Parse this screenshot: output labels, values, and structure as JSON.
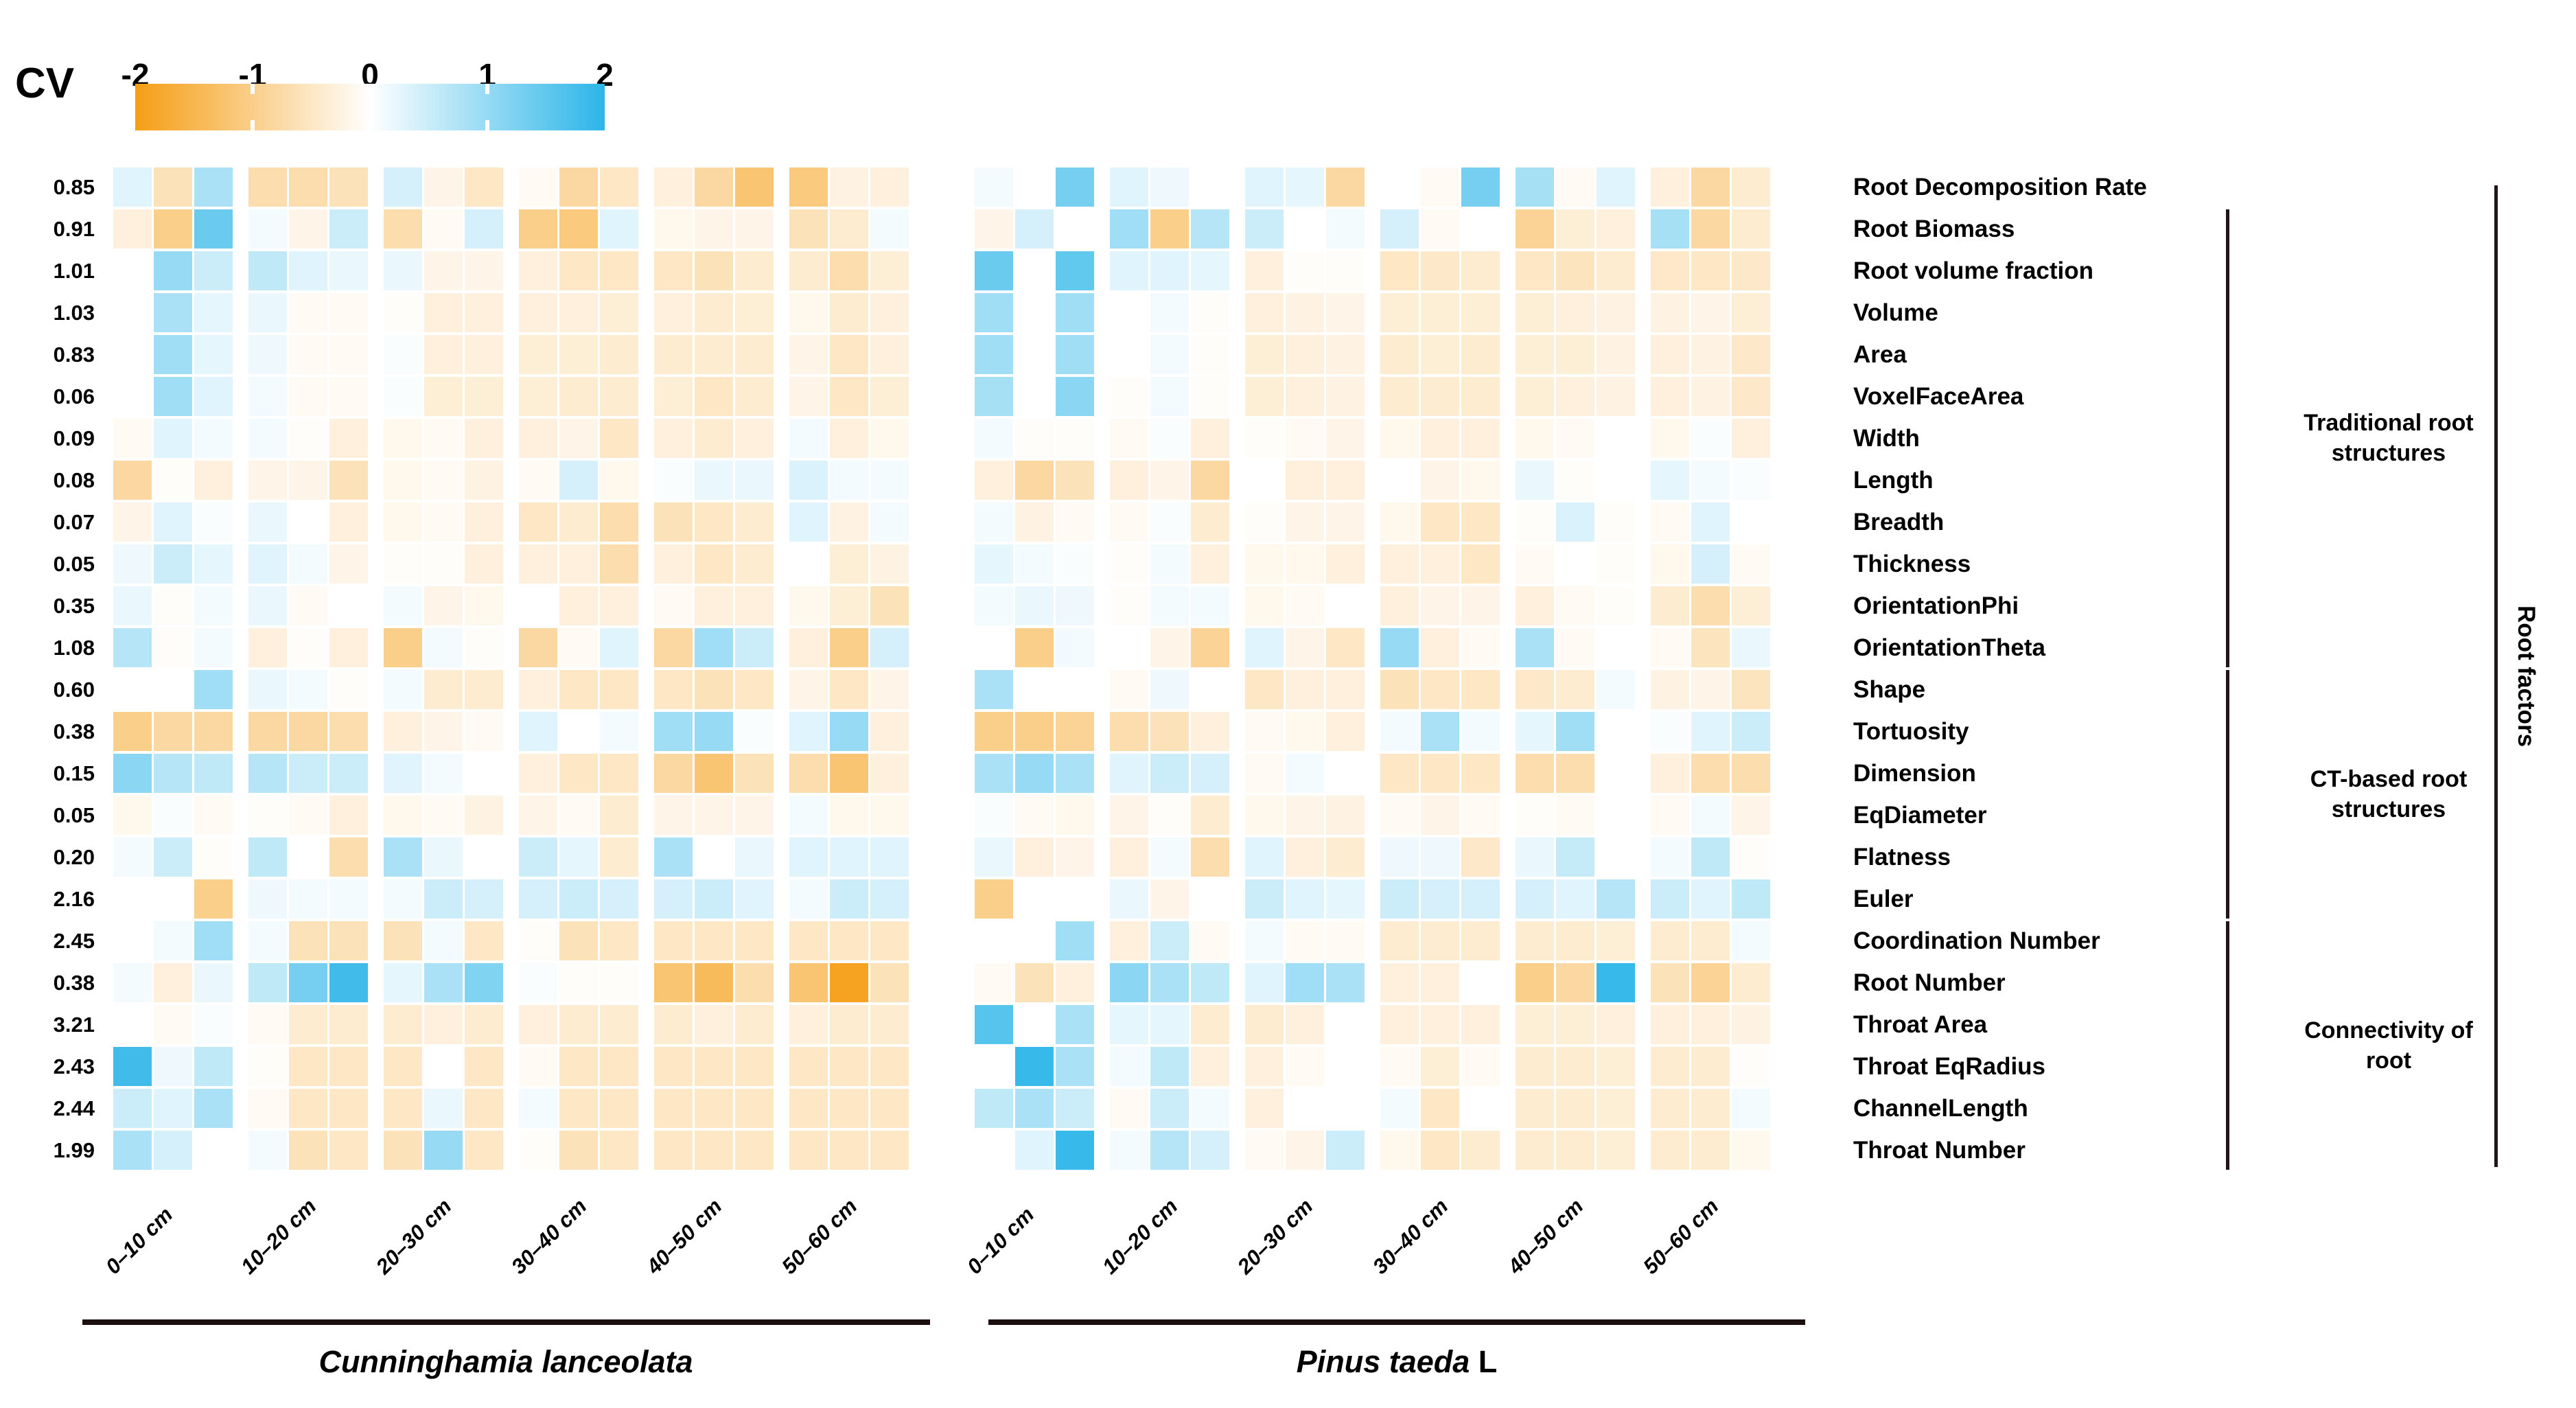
{
  "legend": {
    "label": "CV",
    "ticks": [
      "-2",
      "-1",
      "0",
      "1",
      "2"
    ],
    "color_negative_end": "#F59E15",
    "color_zero": "#FFFFFF",
    "color_positive_end": "#2CB5E8"
  },
  "annotations": {
    "groups": [
      {
        "id": "traditional",
        "label_line1": "Traditional root",
        "label_line2": "structures"
      },
      {
        "id": "ct",
        "label_line1": "CT-based root",
        "label_line2": "structures"
      },
      {
        "id": "connectivity",
        "label_line1": "Connectivity of",
        "label_line2": "root"
      }
    ],
    "right_axis_label": "Root factors"
  },
  "chart_data": {
    "type": "heatmap",
    "value_range": [
      -2,
      2
    ],
    "colorbar_title": "CV",
    "species": [
      {
        "key": "cl",
        "name_italic": "Cunninghamia lanceolata",
        "name_suffix": ""
      },
      {
        "key": "pt",
        "name_italic": "Pinus taeda",
        "name_suffix": "L"
      }
    ],
    "depths": [
      "0–10 cm",
      "10–20 cm",
      "20–30 cm",
      "30–40 cm",
      "40–50 cm",
      "50–60 cm"
    ],
    "replicates_per_depth": 3,
    "rows": [
      {
        "label": "Root Decomposition Rate",
        "cv": "0.85",
        "group": "none",
        "cl": [
          0.3,
          -0.6,
          0.8,
          -0.7,
          -0.7,
          -0.6,
          0.4,
          -0.2,
          -0.5,
          -0.1,
          -0.8,
          -0.5,
          -0.3,
          -0.8,
          -1.2,
          -1.1,
          -0.25,
          -0.3
        ],
        "pt": [
          0.1,
          0,
          1.3,
          0.3,
          0.15,
          0,
          0.3,
          0.25,
          -0.8,
          0,
          -0.1,
          1.3,
          0.85,
          -0.1,
          0.3,
          -0.3,
          -0.8,
          -0.4
        ]
      },
      {
        "label": "Root Biomass",
        "cv": "0.91",
        "group": "traditional",
        "cl": [
          -0.3,
          -1.0,
          1.4,
          0.1,
          -0.2,
          0.5,
          -0.7,
          -0.1,
          0.4,
          -1.0,
          -1.1,
          0.3,
          -0.15,
          -0.2,
          -0.2,
          -0.6,
          -0.4,
          0.1
        ],
        "pt": [
          -0.2,
          0.4,
          0,
          0.9,
          -1.0,
          0.7,
          0.5,
          0,
          0.1,
          0.4,
          -0.1,
          0,
          -0.9,
          -0.35,
          -0.3,
          0.85,
          -0.8,
          -0.4
        ]
      },
      {
        "label": "Root volume fraction",
        "cv": "1.01",
        "group": "traditional",
        "cl": [
          0,
          1.0,
          0.5,
          0.6,
          0.3,
          0.2,
          0.2,
          -0.2,
          -0.2,
          -0.3,
          -0.5,
          -0.5,
          -0.5,
          -0.6,
          -0.4,
          -0.4,
          -0.7,
          -0.35
        ],
        "pt": [
          1.4,
          0,
          1.5,
          0.3,
          0.3,
          0.25,
          -0.3,
          -0.05,
          -0.05,
          -0.5,
          -0.45,
          -0.4,
          -0.5,
          -0.55,
          -0.4,
          -0.45,
          -0.5,
          -0.45
        ]
      },
      {
        "label": "Volume",
        "cv": "1.03",
        "group": "traditional",
        "cl": [
          0,
          0.8,
          0.25,
          0.2,
          -0.1,
          -0.1,
          -0.05,
          -0.3,
          -0.3,
          -0.3,
          -0.3,
          -0.35,
          -0.3,
          -0.4,
          -0.35,
          -0.15,
          -0.4,
          -0.3
        ],
        "pt": [
          0.9,
          0,
          0.9,
          0,
          0.1,
          -0.05,
          -0.3,
          -0.25,
          -0.2,
          -0.35,
          -0.35,
          -0.35,
          -0.35,
          -0.3,
          -0.25,
          -0.25,
          -0.2,
          -0.35
        ]
      },
      {
        "label": "Area",
        "cv": "0.83",
        "group": "traditional",
        "cl": [
          0,
          0.9,
          0.25,
          0.15,
          -0.1,
          -0.1,
          0.05,
          -0.3,
          -0.3,
          -0.35,
          -0.35,
          -0.4,
          -0.4,
          -0.4,
          -0.4,
          -0.2,
          -0.5,
          -0.3
        ],
        "pt": [
          0.9,
          0,
          0.9,
          0,
          0.1,
          -0.05,
          -0.35,
          -0.3,
          -0.25,
          -0.4,
          -0.35,
          -0.4,
          -0.35,
          -0.35,
          -0.25,
          -0.3,
          -0.25,
          -0.45
        ]
      },
      {
        "label": "VoxelFaceArea",
        "cv": "0.06",
        "group": "traditional",
        "cl": [
          0,
          0.9,
          0.3,
          0.1,
          -0.1,
          -0.1,
          0.05,
          -0.35,
          -0.35,
          -0.35,
          -0.4,
          -0.4,
          -0.35,
          -0.5,
          -0.4,
          -0.2,
          -0.5,
          -0.35
        ],
        "pt": [
          0.85,
          0,
          1.1,
          -0.05,
          0.1,
          -0.05,
          -0.35,
          -0.3,
          -0.25,
          -0.4,
          -0.4,
          -0.4,
          -0.35,
          -0.3,
          -0.25,
          -0.3,
          -0.25,
          -0.45
        ]
      },
      {
        "label": "Width",
        "cv": "0.09",
        "group": "traditional",
        "cl": [
          -0.1,
          0.3,
          0.1,
          0.1,
          -0.05,
          -0.3,
          -0.15,
          -0.1,
          -0.3,
          -0.3,
          -0.2,
          -0.5,
          -0.3,
          -0.4,
          -0.3,
          0.1,
          -0.3,
          -0.15
        ],
        "pt": [
          0.1,
          -0.05,
          -0.05,
          -0.1,
          0.05,
          -0.3,
          -0.05,
          -0.1,
          -0.2,
          -0.15,
          -0.3,
          -0.3,
          -0.15,
          -0.1,
          0,
          -0.15,
          0.05,
          -0.3
        ]
      },
      {
        "label": "Length",
        "cv": "0.08",
        "group": "traditional",
        "cl": [
          -0.8,
          -0.05,
          -0.3,
          -0.2,
          -0.2,
          -0.6,
          -0.15,
          -0.1,
          -0.25,
          -0.1,
          0.4,
          -0.15,
          0.05,
          0.2,
          0.2,
          0.35,
          0.1,
          0.1
        ],
        "pt": [
          -0.3,
          -0.8,
          -0.6,
          -0.3,
          -0.2,
          -0.8,
          0,
          -0.3,
          -0.3,
          0,
          -0.2,
          -0.15,
          0.2,
          -0.05,
          0,
          0.25,
          0.1,
          0.05
        ]
      },
      {
        "label": "Breadth",
        "cv": "0.07",
        "group": "traditional",
        "cl": [
          -0.2,
          0.3,
          0.05,
          0.2,
          0,
          -0.3,
          -0.15,
          -0.1,
          -0.3,
          -0.5,
          -0.4,
          -0.7,
          -0.6,
          -0.5,
          -0.4,
          0.3,
          -0.25,
          0.1
        ],
        "pt": [
          0.1,
          -0.25,
          -0.1,
          -0.1,
          0.05,
          -0.4,
          -0.05,
          -0.2,
          -0.2,
          -0.15,
          -0.5,
          -0.5,
          -0.05,
          0.35,
          -0.05,
          -0.1,
          0.3,
          0
        ]
      },
      {
        "label": "Thickness",
        "cv": "0.05",
        "group": "traditional",
        "cl": [
          0.15,
          0.5,
          0.25,
          0.3,
          0.1,
          -0.2,
          -0.05,
          -0.05,
          -0.3,
          -0.3,
          -0.3,
          -0.7,
          -0.3,
          -0.5,
          -0.4,
          0,
          -0.35,
          -0.25
        ],
        "pt": [
          0.25,
          0.1,
          0.05,
          -0.05,
          0.1,
          -0.3,
          -0.15,
          -0.15,
          -0.3,
          -0.3,
          -0.3,
          -0.5,
          -0.1,
          0,
          -0.05,
          -0.15,
          0.4,
          -0.1
        ]
      },
      {
        "label": "OrientationPhi",
        "cv": "0.35",
        "group": "traditional",
        "cl": [
          0.2,
          -0.05,
          0.1,
          0.2,
          -0.1,
          0,
          0.1,
          -0.2,
          -0.15,
          0,
          -0.3,
          -0.3,
          -0.1,
          -0.3,
          -0.3,
          -0.15,
          -0.35,
          -0.6
        ],
        "pt": [
          0.1,
          0.2,
          0.15,
          -0.05,
          0.1,
          0.1,
          -0.15,
          -0.1,
          0,
          -0.3,
          -0.2,
          -0.2,
          -0.3,
          -0.1,
          -0.05,
          -0.4,
          -0.7,
          -0.35
        ]
      },
      {
        "label": "OrientationTheta",
        "cv": "1.08",
        "group": "traditional",
        "cl": [
          0.7,
          -0.05,
          0.1,
          -0.3,
          -0.05,
          -0.3,
          -1.0,
          0.1,
          -0.05,
          -0.8,
          -0.1,
          0.3,
          -0.8,
          0.9,
          0.5,
          -0.3,
          -1.0,
          0.4
        ],
        "pt": [
          0,
          -1.0,
          0.1,
          0,
          -0.2,
          -0.9,
          0.3,
          -0.2,
          -0.5,
          1.0,
          -0.3,
          -0.1,
          0.8,
          -0.1,
          0,
          -0.1,
          -0.55,
          0.2
        ]
      },
      {
        "label": "Shape",
        "cv": "0.60",
        "group": "ct",
        "cl": [
          0,
          0,
          0.9,
          0.2,
          0.1,
          -0.05,
          0.1,
          -0.4,
          -0.4,
          -0.3,
          -0.5,
          -0.5,
          -0.5,
          -0.6,
          -0.5,
          -0.2,
          -0.5,
          -0.2
        ],
        "pt": [
          0.8,
          0,
          0,
          -0.1,
          0.15,
          0,
          -0.5,
          -0.3,
          -0.3,
          -0.6,
          -0.5,
          -0.5,
          -0.45,
          -0.4,
          0.1,
          -0.25,
          -0.2,
          -0.55
        ]
      },
      {
        "label": "Tortuosity",
        "cv": "0.38",
        "group": "ct",
        "cl": [
          -1.0,
          -0.8,
          -0.8,
          -0.8,
          -0.8,
          -0.7,
          -0.3,
          -0.2,
          -0.1,
          0.3,
          0,
          0.1,
          0.9,
          1.0,
          0.05,
          0.3,
          1.0,
          -0.3
        ],
        "pt": [
          -1.0,
          -1.0,
          -0.9,
          -0.7,
          -0.6,
          -0.3,
          -0.1,
          -0.15,
          -0.3,
          0.1,
          0.8,
          0.1,
          0.25,
          0.9,
          0,
          0.05,
          0.3,
          0.5
        ]
      },
      {
        "label": "Dimension",
        "cv": "0.15",
        "group": "ct",
        "cl": [
          1.1,
          0.7,
          0.6,
          0.7,
          0.5,
          0.5,
          0.3,
          0.1,
          0,
          -0.3,
          -0.5,
          -0.5,
          -0.8,
          -1.2,
          -0.6,
          -0.7,
          -1.2,
          -0.3
        ],
        "pt": [
          0.8,
          1.0,
          0.8,
          0.3,
          0.5,
          0.4,
          -0.1,
          0.1,
          0,
          -0.5,
          -0.5,
          -0.5,
          -0.7,
          -0.7,
          0,
          -0.3,
          -0.7,
          -0.7
        ]
      },
      {
        "label": "EqDiameter",
        "cv": "0.05",
        "group": "ct",
        "cl": [
          -0.15,
          0.05,
          -0.1,
          -0.05,
          -0.1,
          -0.3,
          -0.15,
          -0.1,
          -0.25,
          -0.2,
          -0.1,
          -0.4,
          -0.2,
          -0.2,
          -0.2,
          0.1,
          -0.15,
          -0.15
        ],
        "pt": [
          0.05,
          -0.1,
          -0.15,
          -0.2,
          -0.05,
          -0.4,
          -0.15,
          -0.2,
          -0.25,
          -0.1,
          -0.2,
          -0.1,
          -0.05,
          -0.1,
          0,
          -0.1,
          0.1,
          -0.2
        ]
      },
      {
        "label": "Flatness",
        "cv": "0.20",
        "group": "ct",
        "cl": [
          0.1,
          0.5,
          -0.05,
          0.6,
          0,
          -0.7,
          0.8,
          0.2,
          0,
          0.5,
          0.25,
          -0.4,
          0.8,
          0,
          0.2,
          0.3,
          0.3,
          0.3
        ],
        "pt": [
          0.2,
          -0.3,
          -0.2,
          -0.3,
          0.1,
          -0.7,
          0.3,
          -0.3,
          -0.4,
          0.15,
          0.15,
          -0.45,
          0.2,
          0.55,
          0,
          0.1,
          0.6,
          -0.05
        ]
      },
      {
        "label": "Euler",
        "cv": "2.16",
        "group": "ct",
        "cl": [
          0,
          0,
          -1.0,
          0.15,
          0.1,
          0.1,
          0.1,
          0.5,
          0.4,
          0.4,
          0.5,
          0.4,
          0.4,
          0.5,
          0.3,
          0.1,
          0.5,
          0.4
        ],
        "pt": [
          -1.0,
          0,
          0,
          0.2,
          -0.2,
          0,
          0.5,
          0.3,
          0.25,
          0.5,
          0.4,
          0.4,
          0.4,
          0.3,
          0.7,
          0.5,
          0.3,
          0.6
        ]
      },
      {
        "label": "Coordination Number",
        "cv": "2.45",
        "group": "connectivity",
        "cl": [
          0,
          0.1,
          0.9,
          0.1,
          -0.6,
          -0.6,
          -0.6,
          0.1,
          -0.5,
          -0.05,
          -0.6,
          -0.5,
          -0.5,
          -0.5,
          -0.5,
          -0.5,
          -0.5,
          -0.5
        ],
        "pt": [
          0,
          0,
          0.9,
          -0.3,
          0.5,
          -0.1,
          0.1,
          -0.1,
          -0.1,
          -0.4,
          -0.4,
          -0.4,
          -0.4,
          -0.4,
          -0.35,
          -0.4,
          -0.4,
          0.1
        ]
      },
      {
        "label": "Root Number",
        "cv": "0.38",
        "group": "connectivity",
        "cl": [
          0.1,
          -0.3,
          0.2,
          0.6,
          1.3,
          1.8,
          0.25,
          0.8,
          1.2,
          0.05,
          -0.05,
          -0.05,
          -1.2,
          -1.4,
          -0.7,
          -1.2,
          -1.9,
          -0.6
        ],
        "pt": [
          -0.1,
          -0.6,
          -0.3,
          1.1,
          0.8,
          0.6,
          0.3,
          0.9,
          0.8,
          -0.3,
          -0.3,
          0,
          -1.0,
          -0.8,
          1.9,
          -0.6,
          -0.9,
          -0.4
        ]
      },
      {
        "label": "Throat Area",
        "cv": "3.21",
        "group": "connectivity",
        "cl": [
          0,
          -0.1,
          0.05,
          -0.1,
          -0.4,
          -0.4,
          -0.4,
          -0.3,
          -0.4,
          -0.3,
          -0.4,
          -0.4,
          -0.4,
          -0.3,
          -0.4,
          -0.3,
          -0.4,
          -0.4
        ],
        "pt": [
          1.6,
          0,
          0.8,
          0.25,
          0.25,
          -0.4,
          -0.4,
          -0.3,
          0,
          -0.3,
          -0.3,
          -0.3,
          -0.35,
          -0.35,
          -0.3,
          -0.3,
          -0.3,
          -0.25
        ]
      },
      {
        "label": "Throat EqRadius",
        "cv": "2.43",
        "group": "connectivity",
        "cl": [
          1.8,
          0.15,
          0.6,
          -0.05,
          -0.5,
          -0.5,
          -0.5,
          0,
          -0.5,
          -0.1,
          -0.5,
          -0.5,
          -0.5,
          -0.5,
          -0.5,
          -0.5,
          -0.5,
          -0.5
        ],
        "pt": [
          0,
          1.9,
          0.8,
          0.1,
          0.6,
          -0.3,
          -0.3,
          -0.1,
          0,
          -0.1,
          -0.35,
          -0.1,
          -0.4,
          -0.4,
          -0.35,
          -0.4,
          -0.4,
          -0.05
        ]
      },
      {
        "label": "ChannelLength",
        "cv": "2.44",
        "group": "connectivity",
        "cl": [
          0.5,
          0.3,
          0.8,
          -0.1,
          -0.5,
          -0.5,
          -0.5,
          0.2,
          -0.5,
          0.1,
          -0.5,
          -0.5,
          -0.5,
          -0.5,
          -0.5,
          -0.5,
          -0.5,
          -0.5
        ],
        "pt": [
          0.6,
          0.8,
          0.5,
          -0.1,
          0.5,
          0.1,
          -0.3,
          0,
          0,
          0.1,
          -0.5,
          0,
          -0.4,
          -0.4,
          -0.35,
          -0.4,
          -0.4,
          0.1
        ]
      },
      {
        "label": "Throat Number",
        "cv": "1.99",
        "group": "connectivity",
        "cl": [
          0.8,
          0.4,
          0,
          0.1,
          -0.6,
          -0.5,
          -0.6,
          1.0,
          -0.5,
          -0.05,
          -0.6,
          -0.5,
          -0.5,
          -0.5,
          -0.5,
          -0.5,
          -0.5,
          -0.5
        ],
        "pt": [
          0,
          0.3,
          1.9,
          0.1,
          0.7,
          0.4,
          -0.1,
          -0.2,
          0.5,
          -0.15,
          -0.5,
          -0.4,
          -0.4,
          -0.4,
          -0.35,
          -0.4,
          -0.4,
          -0.15
        ]
      }
    ]
  }
}
